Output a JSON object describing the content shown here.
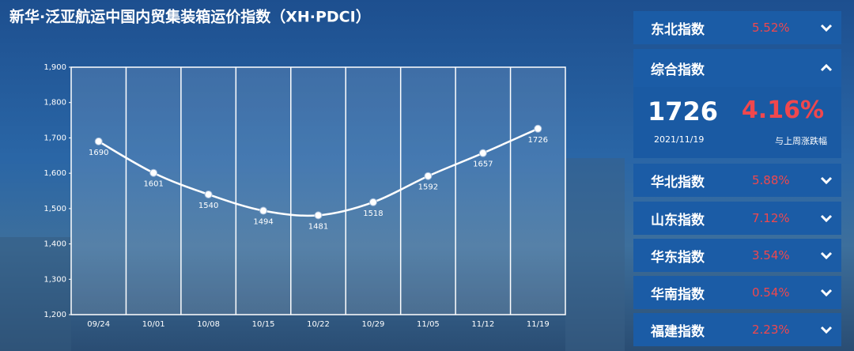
{
  "chart_data": {
    "type": "line",
    "title": "新华·泛亚航运中国内贸集装箱运价指数（XH·PDCI）",
    "categories": [
      "09/24",
      "10/01",
      "10/08",
      "10/15",
      "10/22",
      "10/29",
      "11/05",
      "11/12",
      "11/19"
    ],
    "values": [
      1690,
      1601,
      1540,
      1494,
      1481,
      1518,
      1592,
      1657,
      1726
    ],
    "color": "#ffffff",
    "ylim": [
      1200,
      1900
    ],
    "yticks": [
      {
        "value": 1200,
        "label": "1,200"
      },
      {
        "value": 1300,
        "label": "1,300"
      },
      {
        "value": 1400,
        "label": "1,400"
      },
      {
        "value": 1500,
        "label": "1,500"
      },
      {
        "value": 1600,
        "label": "1,600"
      },
      {
        "value": 1700,
        "label": "1,700"
      },
      {
        "value": 1800,
        "label": "1,800"
      },
      {
        "value": 1900,
        "label": "1,900"
      }
    ],
    "grid": true
  },
  "panel": {
    "items": [
      {
        "name": "东北指数",
        "change": "5.52%"
      },
      {
        "name": "华北指数",
        "change": "5.88%"
      },
      {
        "name": "山东指数",
        "change": "7.12%"
      },
      {
        "name": "华东指数",
        "change": "3.54%"
      },
      {
        "name": "华南指数",
        "change": "0.54%"
      },
      {
        "name": "福建指数",
        "change": "2.23%"
      }
    ],
    "composite": {
      "name": "综合指数",
      "value": 1726,
      "change": "4.16%",
      "date": "2021/11/19",
      "change_label": "与上周涨跌幅"
    }
  }
}
